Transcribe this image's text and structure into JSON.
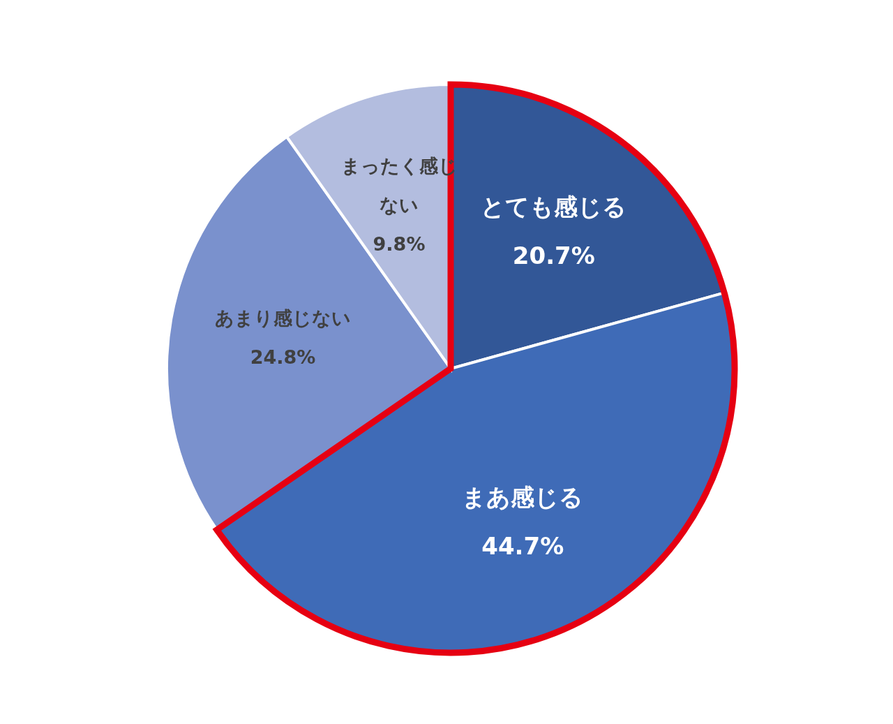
{
  "chart_data": {
    "type": "pie",
    "categories": [
      "とても感じる",
      "まあ感じる",
      "あまり感じない",
      "まったく感じない"
    ],
    "values": [
      20.7,
      44.7,
      24.8,
      9.8
    ],
    "colors": [
      "#325797",
      "#3f6bb7",
      "#7a91cd",
      "#b3bddf"
    ],
    "value_labels": [
      "20.7%",
      "44.7%",
      "24.8%",
      "9.8%"
    ]
  }
}
